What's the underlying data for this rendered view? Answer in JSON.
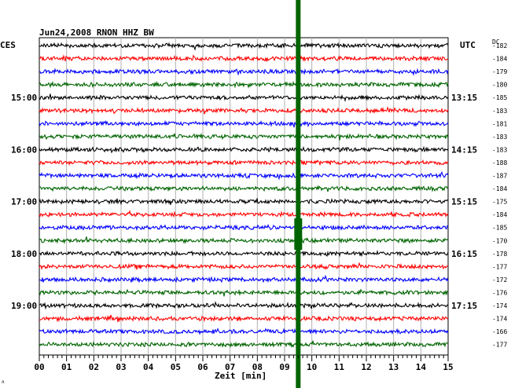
{
  "chart_data": {
    "type": "line",
    "title": "Jun24,2008   RNON HHZ BW",
    "left_timezone": "CES",
    "right_timezone": "UTC",
    "dc_header": "DC",
    "xlabel": "Zeit [min]",
    "xlim": [
      0,
      15
    ],
    "x_ticks": [
      "00",
      "01",
      "02",
      "03",
      "04",
      "05",
      "06",
      "07",
      "08",
      "09",
      "10",
      "11",
      "12",
      "13",
      "14",
      "15"
    ],
    "grid": true,
    "trace_colors": [
      "#000000",
      "#ff0000",
      "#0000ff",
      "#006400"
    ],
    "traces": [
      {
        "dc": "-182",
        "left_label": "",
        "right_label": ""
      },
      {
        "dc": "-184",
        "left_label": "",
        "right_label": ""
      },
      {
        "dc": "-179",
        "left_label": "",
        "right_label": ""
      },
      {
        "dc": "-180",
        "left_label": "",
        "right_label": ""
      },
      {
        "dc": "-185",
        "left_label": "15:00",
        "right_label": "13:15"
      },
      {
        "dc": "-183",
        "left_label": "",
        "right_label": ""
      },
      {
        "dc": "-181",
        "left_label": "",
        "right_label": ""
      },
      {
        "dc": "-183",
        "left_label": "",
        "right_label": ""
      },
      {
        "dc": "-183",
        "left_label": "16:00",
        "right_label": "14:15"
      },
      {
        "dc": "-188",
        "left_label": "",
        "right_label": ""
      },
      {
        "dc": "-187",
        "left_label": "",
        "right_label": ""
      },
      {
        "dc": "-184",
        "left_label": "",
        "right_label": ""
      },
      {
        "dc": "-175",
        "left_label": "17:00",
        "right_label": "15:15"
      },
      {
        "dc": "-184",
        "left_label": "",
        "right_label": ""
      },
      {
        "dc": "-185",
        "left_label": "",
        "right_label": ""
      },
      {
        "dc": "-170",
        "left_label": "",
        "right_label": ""
      },
      {
        "dc": "-178",
        "left_label": "18:00",
        "right_label": "16:15"
      },
      {
        "dc": "-177",
        "left_label": "",
        "right_label": ""
      },
      {
        "dc": "-172",
        "left_label": "",
        "right_label": ""
      },
      {
        "dc": "-176",
        "left_label": "",
        "right_label": ""
      },
      {
        "dc": "-174",
        "left_label": "19:00",
        "right_label": "17:15"
      },
      {
        "dc": "-174",
        "left_label": "",
        "right_label": ""
      },
      {
        "dc": "-166",
        "left_label": "",
        "right_label": ""
      },
      {
        "dc": "-177",
        "left_label": "",
        "right_label": ""
      }
    ],
    "event": {
      "x_min": 9.5,
      "color": "#006400"
    }
  }
}
